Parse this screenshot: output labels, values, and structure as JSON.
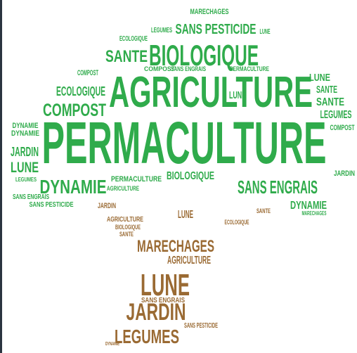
{
  "words": [
    {
      "text": "PERMACULTURE",
      "color": "#2fab4b"
    },
    {
      "text": "AGRICULTURE",
      "color": "#2fab4b"
    },
    {
      "text": "BIOLOGIQUE",
      "color": "#2fab4b"
    },
    {
      "text": "SANTE",
      "color": "#2fab4b"
    },
    {
      "text": "SANS PESTICIDE",
      "color": "#2fab4b"
    },
    {
      "text": "MARECHAGES",
      "color": "#2fab4b"
    },
    {
      "text": "LEGUMES",
      "color": "#2fab4b"
    },
    {
      "text": "ECOLOGIQUE",
      "color": "#2fab4b"
    },
    {
      "text": "COMPOST",
      "color": "#2fab4b"
    },
    {
      "text": "ECOLOGIQUE",
      "color": "#2fab4b"
    },
    {
      "text": "COMPOST",
      "color": "#2fab4b"
    },
    {
      "text": "DYNAMIE",
      "color": "#2fab4b"
    },
    {
      "text": "DYNAMIE",
      "color": "#2fab4b"
    },
    {
      "text": "JARDIN",
      "color": "#2fab4b"
    },
    {
      "text": "LUNE",
      "color": "#2fab4b"
    },
    {
      "text": "LEGUMES",
      "color": "#2fab4b"
    },
    {
      "text": "DYNAMIE",
      "color": "#2fab4b"
    },
    {
      "text": "SANS ENGRAIS",
      "color": "#2fab4b"
    },
    {
      "text": "SANS PESTICIDE",
      "color": "#2fab4b"
    },
    {
      "text": "PERMACULTURE",
      "color": "#2fab4b"
    },
    {
      "text": "AGRICULTURE",
      "color": "#2fab4b"
    },
    {
      "text": "BIOLOGIQUE",
      "color": "#2fab4b"
    },
    {
      "text": "SANS ENGRAIS",
      "color": "#2fab4b"
    },
    {
      "text": "DYNAMIE",
      "color": "#2fab4b"
    },
    {
      "text": "SANTE",
      "color": "#2fab4b"
    },
    {
      "text": "SANTE",
      "color": "#2fab4b"
    },
    {
      "text": "LEGUMES",
      "color": "#2fab4b"
    },
    {
      "text": "COMPOST",
      "color": "#2fab4b"
    },
    {
      "text": "JARDIN",
      "color": "#2fab4b"
    },
    {
      "text": "LUNE",
      "color": "#2fab4b"
    },
    {
      "text": "LUNE",
      "color": "#2fab4b"
    },
    {
      "text": "COMPOST",
      "color": "#2fab4b"
    },
    {
      "text": "SANS ENGRAIS",
      "color": "#2fab4b"
    },
    {
      "text": "PERMACULTURE",
      "color": "#2fab4b"
    },
    {
      "text": "LUNE",
      "color": "#2fab4b"
    },
    {
      "text": "JARDIN",
      "color": "#9a6a33"
    },
    {
      "text": "AGRICULTURE",
      "color": "#9a6a33"
    },
    {
      "text": "BIOLOGIQUE",
      "color": "#9a6a33"
    },
    {
      "text": "LUNE",
      "color": "#9a6a33"
    },
    {
      "text": "MARECHAGES",
      "color": "#9a6a33"
    },
    {
      "text": "AGRICULTURE",
      "color": "#9a6a33"
    },
    {
      "text": "LUNE",
      "color": "#9a6a33"
    },
    {
      "text": "JARDIN",
      "color": "#9a6a33"
    },
    {
      "text": "LEGUMES",
      "color": "#9a6a33"
    },
    {
      "text": "SANS ENGRAIS",
      "color": "#9a6a33"
    },
    {
      "text": "SANS PESTICIDE",
      "color": "#9a6a33"
    },
    {
      "text": "SANTE",
      "color": "#9a6a33"
    },
    {
      "text": "ECOLOGIQUE",
      "color": "#9a6a33"
    },
    {
      "text": "SANTE",
      "color": "#9a6a33"
    },
    {
      "text": "MARECHAGES",
      "color": "#2fab4b"
    },
    {
      "text": "DYNAMIE",
      "color": "#9a6a33"
    }
  ]
}
